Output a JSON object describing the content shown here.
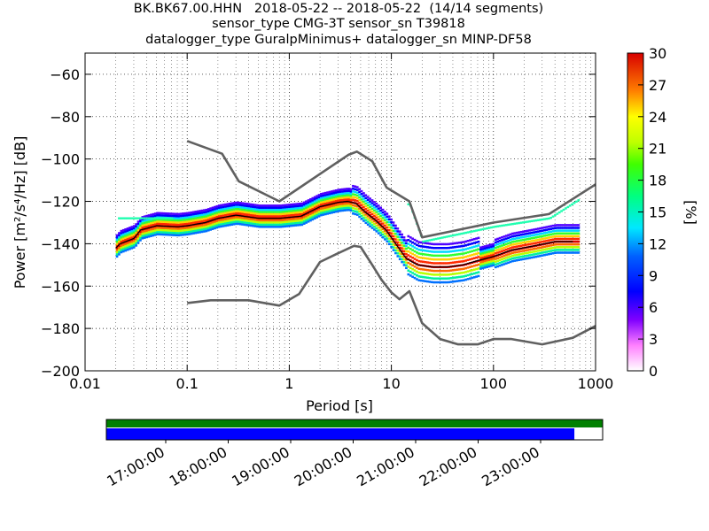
{
  "title_lines": [
    "BK.BK67.00.HHN   2018-05-22 -- 2018-05-22  (14/14 segments)",
    "sensor_type CMG-3T sensor_sn T39818",
    "datalogger_type GuralpMinimus+ datalogger_sn MINP-DF58"
  ],
  "chart_data": {
    "type": "heatmap",
    "xlabel": "Period [s]",
    "ylabel": "Power [m²/s⁴/Hz] [dB]",
    "x_scale": "log",
    "xlim": [
      0.01,
      1000
    ],
    "ylim": [
      -200,
      -50
    ],
    "grid": true,
    "x_ticks": [
      "0.01",
      "0.1",
      "1",
      "10",
      "100",
      "1000"
    ],
    "y_ticks": [
      "−60",
      "−80",
      "−100",
      "−120",
      "−140",
      "−160",
      "−180",
      "−200"
    ],
    "colorbar": {
      "label": "[%]",
      "range": [
        0,
        30
      ],
      "ticks": [
        "0",
        "3",
        "6",
        "9",
        "12",
        "15",
        "18",
        "21",
        "24",
        "27",
        "30"
      ]
    },
    "series": [
      {
        "role": "noise-model-high",
        "x": [
          0.1,
          0.22,
          0.32,
          0.8,
          3.8,
          4.6,
          6.5,
          9,
          15,
          20,
          40,
          100,
          350,
          1000
        ],
        "y": [
          -91.5,
          -97.5,
          -110.5,
          -120,
          -98,
          -96.5,
          -101,
          -113.5,
          -120,
          -137,
          -134,
          -130,
          -126,
          -112
        ]
      },
      {
        "role": "noise-model-low",
        "x": [
          0.1,
          0.17,
          0.4,
          0.8,
          1.25,
          2,
          3,
          4.3,
          5,
          6.5,
          8,
          10,
          12,
          15,
          20,
          30,
          45,
          70,
          100,
          150,
          300,
          600,
          1000
        ],
        "y": [
          -168,
          -166.7,
          -166.7,
          -169.2,
          -163.7,
          -148.6,
          -144.5,
          -141,
          -141.5,
          -150,
          -157,
          -163,
          -166.2,
          -162.4,
          -177.5,
          -185,
          -187.5,
          -187.5,
          -185,
          -185,
          -187.5,
          -184.4,
          -178.8
        ]
      },
      {
        "role": "mean-psd",
        "x": [
          0.02,
          0.022,
          0.03,
          0.035,
          0.05,
          0.08,
          0.1,
          0.15,
          0.2,
          0.3,
          0.5,
          0.8,
          1.3,
          2,
          3,
          3.7,
          4.5,
          5.5,
          7,
          9,
          11,
          14,
          18,
          25,
          35,
          50,
          70,
          100,
          150,
          250,
          400,
          600
        ],
        "y": [
          -142,
          -140,
          -137.5,
          -133.5,
          -131.5,
          -132,
          -131.5,
          -130,
          -128,
          -126.5,
          -128,
          -128,
          -127,
          -122.5,
          -120.5,
          -120,
          -121,
          -125,
          -129,
          -134,
          -140,
          -147,
          -150,
          -151,
          -151,
          -150,
          -148,
          -146,
          -143,
          -141,
          -139,
          -139
        ]
      }
    ],
    "segments": {
      "time_ticks": [
        "17:00:00",
        "18:00:00",
        "19:00:00",
        "20:00:00",
        "21:00:00",
        "22:00:00",
        "23:00:00"
      ],
      "colors": {
        "bar_top": "#008000",
        "bar_bottom": "#0000ff"
      },
      "bottom_coverage_fraction": 0.943
    }
  }
}
